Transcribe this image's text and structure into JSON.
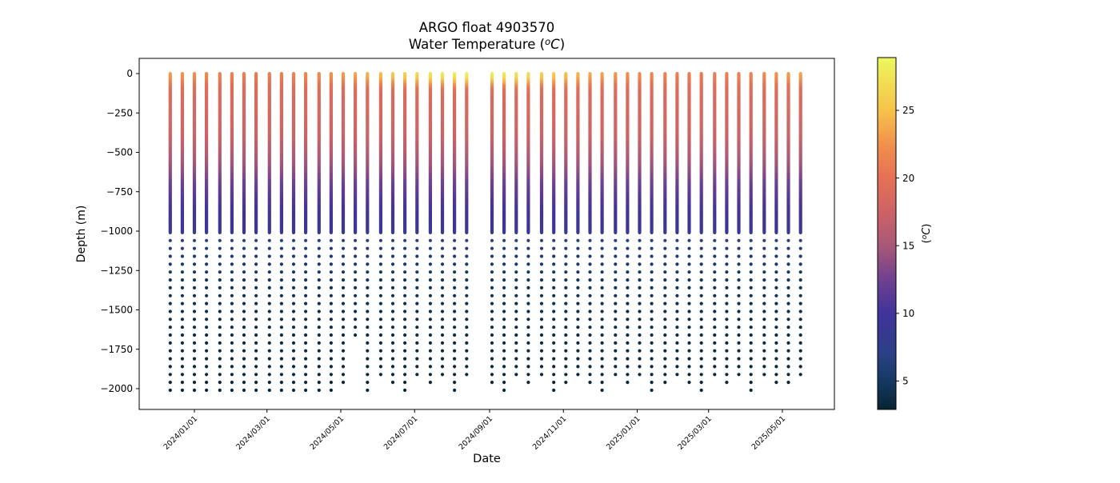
{
  "chart_data": {
    "type": "scatter",
    "title": "ARGO float 4903570",
    "subtitle": "Water Temperature (°C)",
    "subtitle_parts": {
      "prefix": "Water Temperature (",
      "sup": "o",
      "italic": "C",
      "suffix": ")"
    },
    "xlabel": "Date",
    "ylabel": "Depth (m)",
    "x_tick_labels": [
      "2024/01/01",
      "2024/03/01",
      "2024/05/01",
      "2024/07/01",
      "2024/09/01",
      "2024/11/01",
      "2025/01/01",
      "2025/03/01",
      "2025/05/01"
    ],
    "y_ticks": [
      0,
      -250,
      -500,
      -750,
      -1000,
      -1250,
      -1500,
      -1750,
      -2000
    ],
    "ylim": [
      -2140,
      100
    ],
    "grid": false,
    "legend": "none",
    "colorbar": {
      "label": "(°C)",
      "label_parts": {
        "prefix": "(",
        "sup": "o",
        "italic": "C",
        "suffix": ")"
      },
      "ticks": [
        5,
        10,
        15,
        20,
        25
      ],
      "vmin": 2.9,
      "vmax": 28.9,
      "colormap": "thermal",
      "stops": [
        [
          3,
          "#082535"
        ],
        [
          5,
          "#153962"
        ],
        [
          7,
          "#2B4086"
        ],
        [
          10,
          "#41339B"
        ],
        [
          12.5,
          "#6F4190"
        ],
        [
          15,
          "#A85877"
        ],
        [
          17.5,
          "#CC6365"
        ],
        [
          20,
          "#E57055"
        ],
        [
          22.5,
          "#F1914C"
        ],
        [
          25,
          "#F6C24A"
        ],
        [
          27,
          "#F2DC53"
        ],
        [
          29,
          "#EBF860"
        ]
      ]
    },
    "sampling": {
      "upper_zone": "continuous color column from 0 to about -1010 m",
      "deep_dots_start_m": -1060,
      "deep_dots_spacing_m": 50,
      "profile_interval_days": 10.2,
      "data_gap": "one profile missing near 2024/08/23"
    },
    "base_profile": {
      "depths_m": [
        0,
        100,
        200,
        300,
        400,
        500,
        600,
        700,
        800,
        900,
        1000,
        1060,
        1110,
        1160,
        1210,
        1260,
        1310,
        1410,
        1510,
        1660,
        1810,
        2020
      ],
      "temps_c": [
        19.5,
        19.0,
        18.6,
        18.1,
        17.4,
        16.0,
        14.2,
        12.3,
        10.8,
        9.7,
        9.0,
        6.9,
        6.3,
        5.8,
        5.4,
        5.1,
        4.8,
        4.4,
        4.0,
        3.7,
        3.45,
        3.3
      ]
    },
    "surface_anomaly_efold_m": 70,
    "profiles": {
      "dates": [
        "2023/12/12",
        "2023/12/22",
        "2024/01/01",
        "2024/01/11",
        "2024/01/22",
        "2024/02/01",
        "2024/02/11",
        "2024/02/21",
        "2024/03/03",
        "2024/03/13",
        "2024/03/23",
        "2024/04/02",
        "2024/04/13",
        "2024/04/23",
        "2024/05/03",
        "2024/05/13",
        "2024/05/23",
        "2024/06/03",
        "2024/06/13",
        "2024/06/23",
        "2024/07/03",
        "2024/07/14",
        "2024/07/24",
        "2024/08/03",
        "2024/08/13",
        "2024/09/03",
        "2024/09/13",
        "2024/09/23",
        "2024/10/03",
        "2024/10/14",
        "2024/10/24",
        "2024/11/03",
        "2024/11/13",
        "2024/11/23",
        "2024/12/03",
        "2024/12/14",
        "2024/12/24",
        "2025/01/03",
        "2025/01/13",
        "2025/01/24",
        "2025/02/03",
        "2025/02/13",
        "2025/02/23",
        "2025/03/06",
        "2025/03/16",
        "2025/03/26",
        "2025/04/05",
        "2025/04/16",
        "2025/04/26",
        "2025/05/06",
        "2025/05/16"
      ],
      "surface_temp_c": [
        23.1,
        22.7,
        22.3,
        21.9,
        21.6,
        21.3,
        21.1,
        21.0,
        21.1,
        21.2,
        21.4,
        21.7,
        22.1,
        22.5,
        23.0,
        23.6,
        24.2,
        24.9,
        25.6,
        26.2,
        26.8,
        27.4,
        27.9,
        28.2,
        28.5,
        28.3,
        28.0,
        27.6,
        27.1,
        26.4,
        25.8,
        25.1,
        24.4,
        23.8,
        23.3,
        22.9,
        22.5,
        22.2,
        21.9,
        21.5,
        21.3,
        21.1,
        21.0,
        21.1,
        21.2,
        21.4,
        21.7,
        22.1,
        22.5,
        23.0,
        23.6
      ],
      "bottom_depth_m": [
        -2020,
        -2020,
        -2020,
        -2020,
        -2020,
        -2020,
        -2020,
        -2020,
        -2020,
        -2020,
        -2020,
        -2020,
        -2020,
        -2020,
        -1980,
        -1700,
        -2020,
        -1930,
        -1980,
        -2020,
        -1930,
        -1980,
        -1930,
        -2020,
        -1930,
        -1980,
        -2020,
        -1930,
        -1980,
        -1930,
        -2020,
        -1980,
        -1930,
        -1980,
        -2020,
        -1930,
        -1980,
        -1930,
        -2020,
        -1980,
        -1930,
        -1980,
        -2020,
        -1930,
        -1980,
        -1930,
        -2020,
        -1930,
        -1980,
        -1970,
        -1930
      ]
    }
  }
}
